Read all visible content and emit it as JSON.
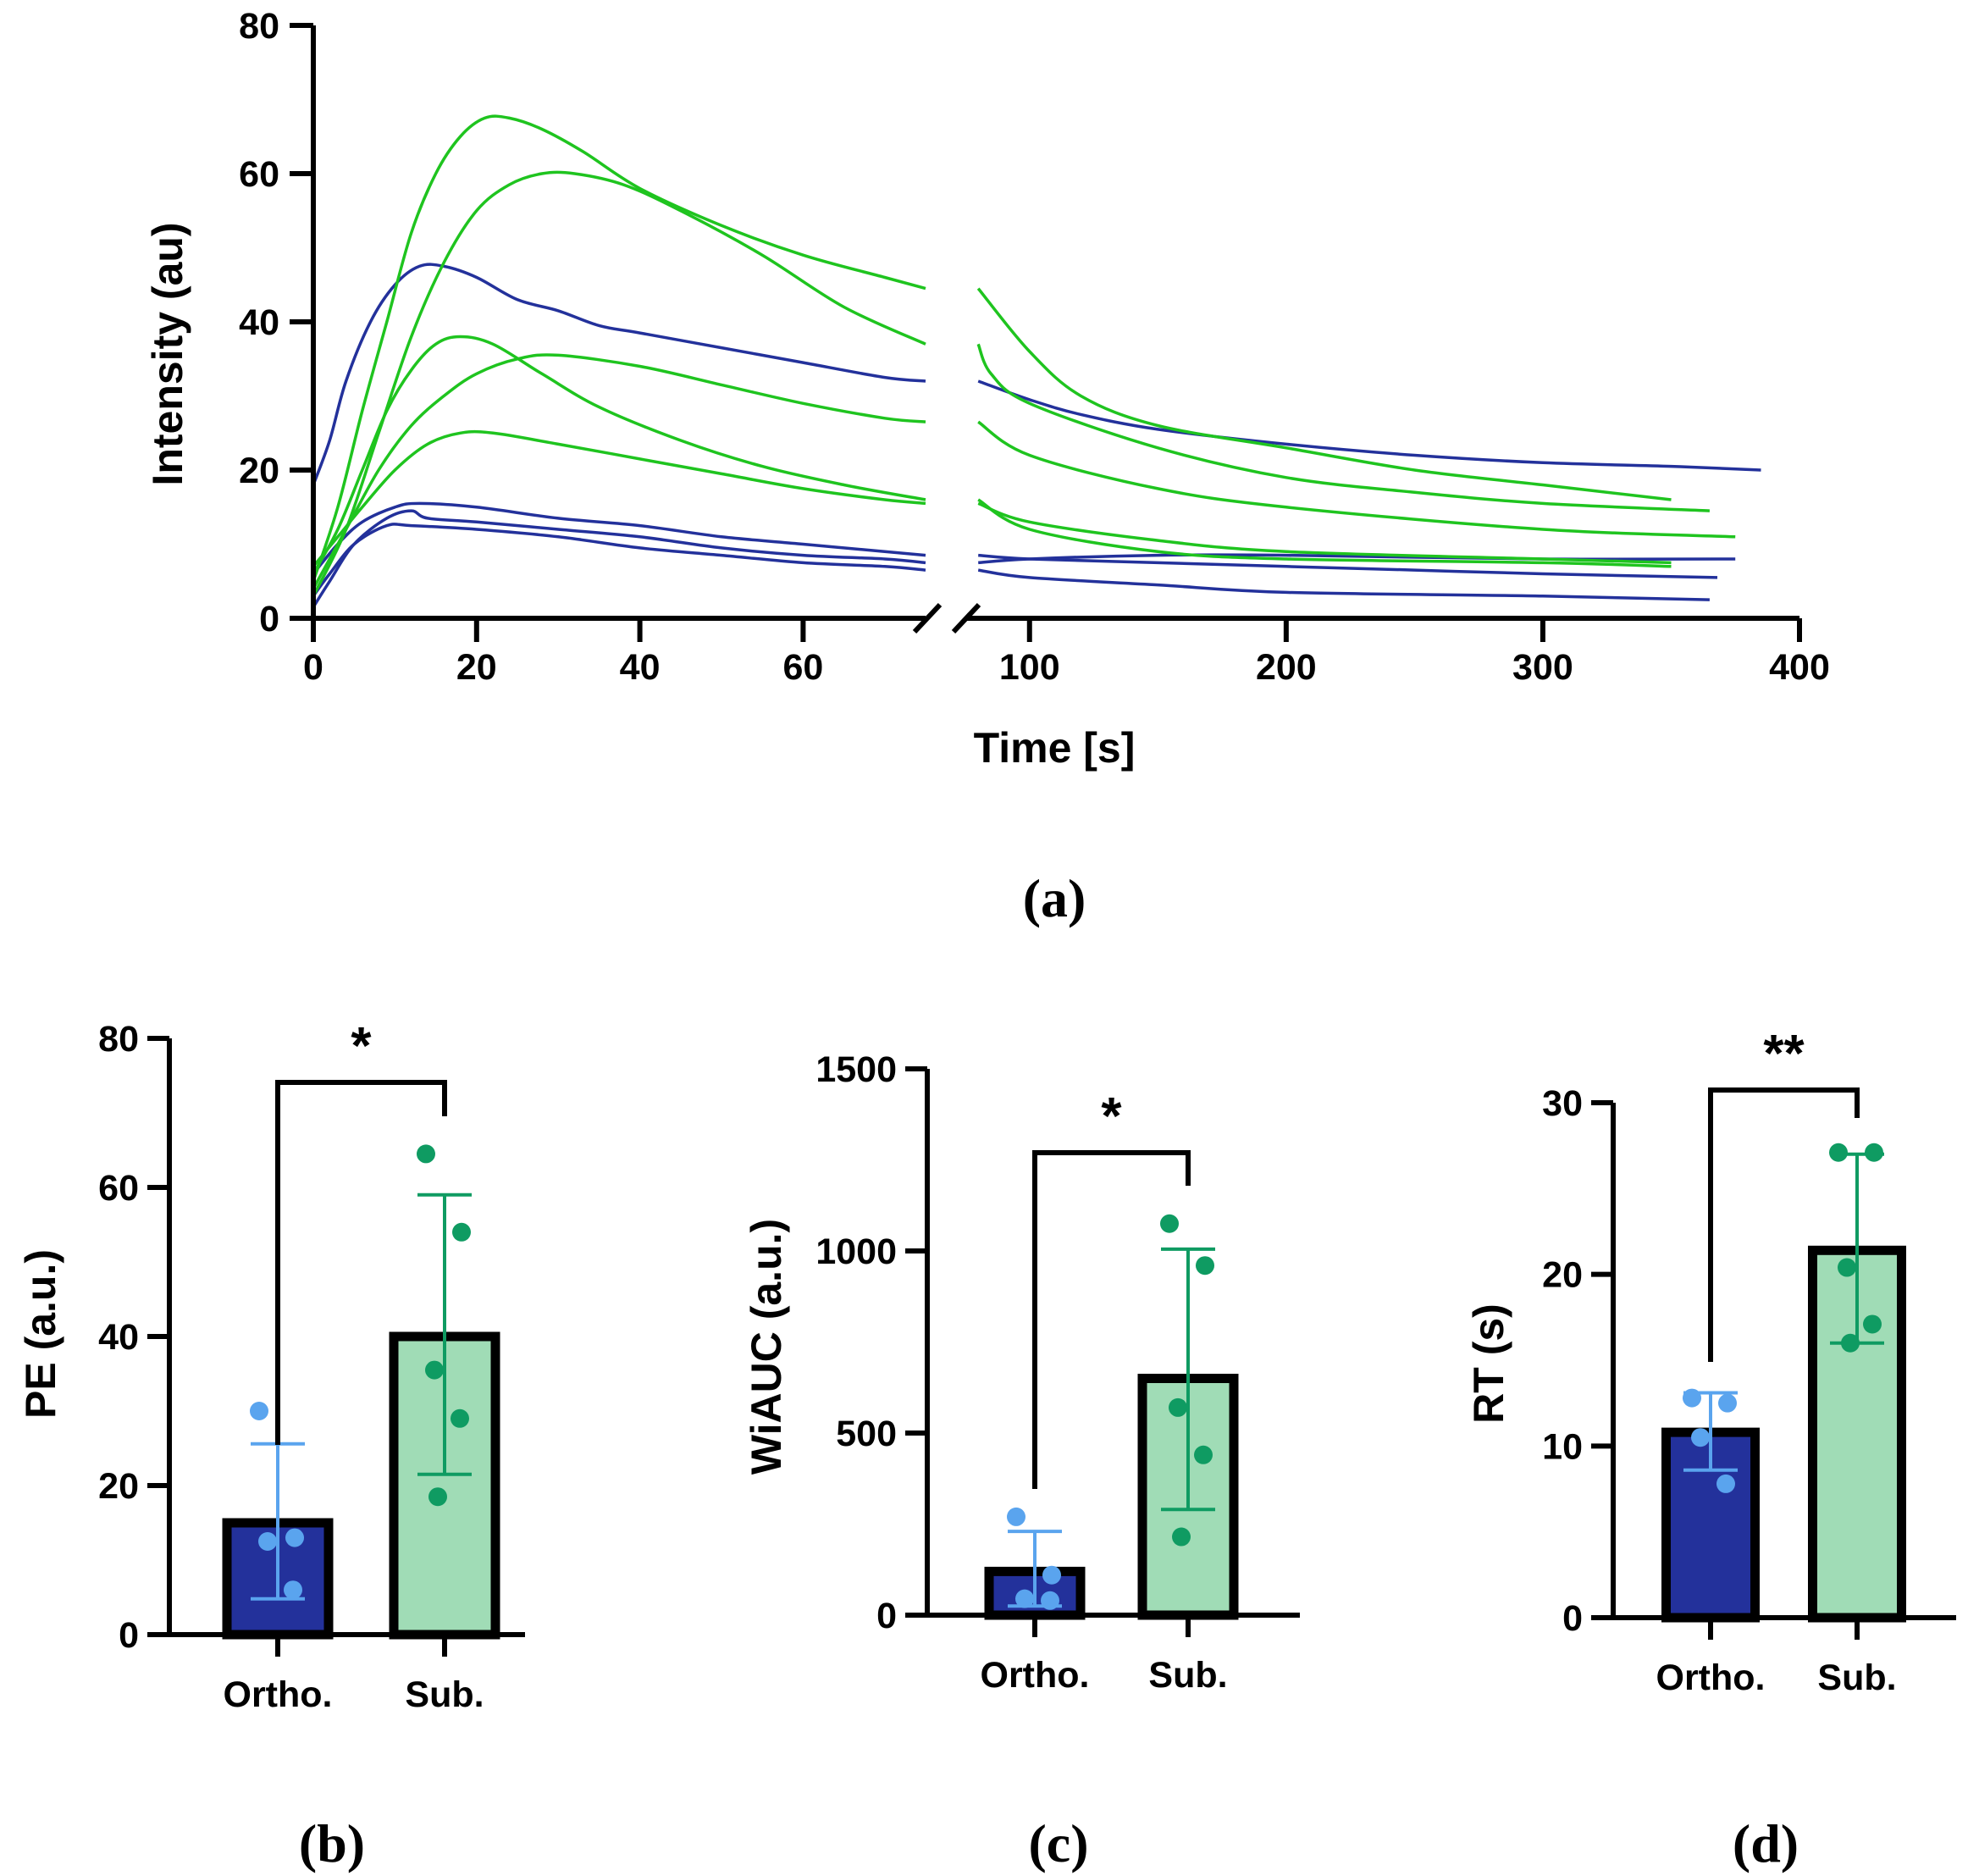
{
  "colors": {
    "ortho": "#23319b",
    "ortho_point": "#5aa4ee",
    "sub": "#1fc41f",
    "sub_bar": "#a0dcb6",
    "sub_point": "#0f9b62"
  },
  "chart_data": [
    {
      "id": "a",
      "type": "line",
      "panel_label": "(a)",
      "xlabel": "Time [s]",
      "ylabel": "Intensity (au)",
      "ylim": [
        0,
        80
      ],
      "y_ticks": [
        "0",
        "20",
        "40",
        "60",
        "80"
      ],
      "x_segment1": {
        "range": [
          0,
          75
        ],
        "ticks": [
          "0",
          "20",
          "40",
          "60"
        ]
      },
      "x_segment2": {
        "range": [
          75,
          400
        ],
        "ticks": [
          "100",
          "200",
          "300",
          "400"
        ]
      },
      "series": [
        {
          "group": "Ortho.",
          "seg1": [
            [
              0,
              18
            ],
            [
              2,
              24
            ],
            [
              4,
              32
            ],
            [
              7,
              40
            ],
            [
              10,
              45
            ],
            [
              13,
              47.5
            ],
            [
              16,
              47.5
            ],
            [
              20,
              46
            ],
            [
              25,
              43
            ],
            [
              30,
              41.5
            ],
            [
              35,
              39.5
            ],
            [
              40,
              38.5
            ],
            [
              50,
              36.5
            ],
            [
              60,
              34.5
            ],
            [
              70,
              32.5
            ],
            [
              75,
              32
            ]
          ],
          "seg2": [
            [
              80,
              32
            ],
            [
              100,
              29.5
            ],
            [
              120,
              27.5
            ],
            [
              150,
              25.5
            ],
            [
              200,
              23.5
            ],
            [
              250,
              22
            ],
            [
              300,
              21
            ],
            [
              350,
              20.5
            ],
            [
              385,
              20
            ]
          ]
        },
        {
          "group": "Ortho.",
          "seg1": [
            [
              0,
              6
            ],
            [
              3,
              10
            ],
            [
              6,
              13
            ],
            [
              10,
              15
            ],
            [
              13,
              15.5
            ],
            [
              20,
              15
            ],
            [
              30,
              13.5
            ],
            [
              40,
              12.5
            ],
            [
              50,
              11
            ],
            [
              60,
              10
            ],
            [
              70,
              9
            ],
            [
              75,
              8.5
            ]
          ],
          "seg2": [
            [
              80,
              8.5
            ],
            [
              100,
              8
            ],
            [
              150,
              7.5
            ],
            [
              200,
              7
            ],
            [
              250,
              6.5
            ],
            [
              300,
              6
            ],
            [
              368,
              5.5
            ]
          ]
        },
        {
          "group": "Ortho.",
          "seg1": [
            [
              0,
              1.5
            ],
            [
              2,
              5
            ],
            [
              5,
              10
            ],
            [
              9,
              13.5
            ],
            [
              12,
              14.5
            ],
            [
              14,
              13.5
            ],
            [
              20,
              13
            ],
            [
              30,
              12
            ],
            [
              40,
              11
            ],
            [
              50,
              9.5
            ],
            [
              60,
              8.5
            ],
            [
              70,
              8
            ],
            [
              75,
              7.5
            ]
          ],
          "seg2": [
            [
              80,
              7.5
            ],
            [
              100,
              8
            ],
            [
              150,
              8.5
            ],
            [
              200,
              8.5
            ],
            [
              300,
              8
            ],
            [
              375,
              8
            ]
          ]
        },
        {
          "group": "Ortho.",
          "seg1": [
            [
              0,
              3
            ],
            [
              2,
              6
            ],
            [
              5,
              10
            ],
            [
              9,
              12.5
            ],
            [
              12,
              12.5
            ],
            [
              20,
              12
            ],
            [
              30,
              11
            ],
            [
              40,
              9.5
            ],
            [
              50,
              8.5
            ],
            [
              60,
              7.5
            ],
            [
              70,
              7
            ],
            [
              75,
              6.5
            ]
          ],
          "seg2": [
            [
              80,
              6.5
            ],
            [
              100,
              5.5
            ],
            [
              150,
              4.5
            ],
            [
              200,
              3.5
            ],
            [
              300,
              3
            ],
            [
              365,
              2.5
            ]
          ]
        },
        {
          "group": "Sub.",
          "seg1": [
            [
              0,
              5
            ],
            [
              3,
              15
            ],
            [
              6,
              28
            ],
            [
              9,
              40
            ],
            [
              12,
              52
            ],
            [
              15,
              60
            ],
            [
              18,
              65
            ],
            [
              21,
              67.5
            ],
            [
              24,
              67.5
            ],
            [
              28,
              66
            ],
            [
              33,
              63
            ],
            [
              40,
              58
            ],
            [
              50,
              53
            ],
            [
              60,
              49
            ],
            [
              70,
              46
            ],
            [
              75,
              44.5
            ]
          ],
          "seg2": [
            [
              80,
              44.5
            ],
            [
              100,
              36
            ],
            [
              120,
              30
            ],
            [
              150,
              26
            ],
            [
              200,
              23
            ],
            [
              250,
              20
            ],
            [
              300,
              18
            ],
            [
              350,
              16
            ]
          ]
        },
        {
          "group": "Sub.",
          "seg1": [
            [
              0,
              3
            ],
            [
              4,
              12
            ],
            [
              8,
              25
            ],
            [
              12,
              38
            ],
            [
              16,
              48
            ],
            [
              20,
              55
            ],
            [
              24,
              58.5
            ],
            [
              28,
              60
            ],
            [
              32,
              60
            ],
            [
              38,
              58.5
            ],
            [
              45,
              55
            ],
            [
              55,
              49
            ],
            [
              65,
              42
            ],
            [
              75,
              37
            ]
          ],
          "seg2": [
            [
              80,
              37
            ],
            [
              85,
              33
            ],
            [
              100,
              29
            ],
            [
              150,
              23
            ],
            [
              200,
              19
            ],
            [
              250,
              17
            ],
            [
              300,
              15.5
            ],
            [
              365,
              14.5
            ]
          ]
        },
        {
          "group": "Sub.",
          "seg1": [
            [
              0,
              6
            ],
            [
              3,
              12
            ],
            [
              6,
              20
            ],
            [
              9,
              28
            ],
            [
              12,
              33.5
            ],
            [
              15,
              37
            ],
            [
              18,
              38
            ],
            [
              22,
              37
            ],
            [
              28,
              33
            ],
            [
              35,
              28.5
            ],
            [
              45,
              24
            ],
            [
              55,
              20.5
            ],
            [
              65,
              18
            ],
            [
              75,
              16
            ]
          ],
          "seg2": [
            [
              80,
              16
            ],
            [
              100,
              12
            ],
            [
              150,
              9
            ],
            [
              200,
              8
            ],
            [
              300,
              7.5
            ],
            [
              350,
              7
            ]
          ]
        },
        {
          "group": "Sub.",
          "seg1": [
            [
              0,
              4
            ],
            [
              4,
              12
            ],
            [
              8,
              20
            ],
            [
              12,
              26
            ],
            [
              16,
              30
            ],
            [
              20,
              33
            ],
            [
              25,
              35
            ],
            [
              30,
              35.5
            ],
            [
              40,
              34
            ],
            [
              50,
              31.5
            ],
            [
              60,
              29
            ],
            [
              70,
              27
            ],
            [
              75,
              26.5
            ]
          ],
          "seg2": [
            [
              80,
              26.5
            ],
            [
              100,
              22
            ],
            [
              150,
              17.5
            ],
            [
              200,
              15
            ],
            [
              300,
              12
            ],
            [
              375,
              11
            ]
          ]
        },
        {
          "group": "Sub.",
          "seg1": [
            [
              0,
              7
            ],
            [
              3,
              11
            ],
            [
              6,
              15
            ],
            [
              10,
              20
            ],
            [
              14,
              23.5
            ],
            [
              18,
              25
            ],
            [
              22,
              25
            ],
            [
              30,
              23.5
            ],
            [
              40,
              21.5
            ],
            [
              50,
              19.5
            ],
            [
              60,
              17.5
            ],
            [
              70,
              16
            ],
            [
              75,
              15.5
            ]
          ],
          "seg2": [
            [
              80,
              15.5
            ],
            [
              100,
              13
            ],
            [
              150,
              10.5
            ],
            [
              200,
              9
            ],
            [
              300,
              8
            ],
            [
              350,
              7.5
            ]
          ]
        }
      ]
    },
    {
      "id": "b",
      "type": "bar",
      "panel_label": "(b)",
      "ylabel": "PE (a.u.)",
      "ylim": [
        0,
        80
      ],
      "y_ticks": [
        "0",
        "20",
        "40",
        "60",
        "80"
      ],
      "categories": [
        "Ortho.",
        "Sub."
      ],
      "values": [
        15,
        40
      ],
      "errors": [
        [
          4.8,
          25.6
        ],
        [
          21.5,
          59
        ]
      ],
      "points": [
        [
          30,
          13,
          12.5,
          6
        ],
        [
          64.5,
          54,
          35.5,
          29,
          18.5
        ]
      ],
      "significance": "*"
    },
    {
      "id": "c",
      "type": "bar",
      "panel_label": "(c)",
      "ylabel": "WiAUC (a.u.)",
      "ylim": [
        0,
        1500
      ],
      "y_ticks": [
        "0",
        "500",
        "1000",
        "1500"
      ],
      "categories": [
        "Ortho.",
        "Sub."
      ],
      "values": [
        120,
        650
      ],
      "errors": [
        [
          25,
          230
        ],
        [
          290,
          1005
        ]
      ],
      "points": [
        [
          270,
          110,
          45,
          40
        ],
        [
          1075,
          960,
          570,
          440,
          215
        ]
      ],
      "significance": "*"
    },
    {
      "id": "d",
      "type": "bar",
      "panel_label": "(d)",
      "ylabel": "RT (s)",
      "ylim": [
        0,
        30
      ],
      "y_ticks": [
        "0",
        "10",
        "20",
        "30"
      ],
      "categories": [
        "Ortho.",
        "Sub."
      ],
      "values": [
        10.8,
        21.4
      ],
      "errors": [
        [
          8.6,
          13.1
        ],
        [
          16,
          27
        ]
      ],
      "points": [
        [
          12.8,
          12.5,
          10.5,
          7.8
        ],
        [
          27.1,
          27.1,
          20.4,
          17.1,
          16
        ]
      ],
      "significance": "**"
    }
  ]
}
